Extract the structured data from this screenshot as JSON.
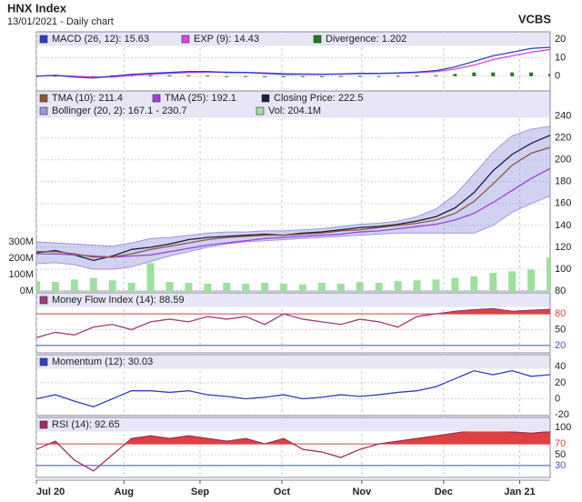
{
  "header": {
    "title": "HNX Index",
    "subtitle": "13/01/2021 - Daily chart",
    "source": "VCBS"
  },
  "x_axis": {
    "xlim": [
      0,
      27
    ],
    "xticks": [
      {
        "value": 0,
        "label": "Jul 20"
      },
      {
        "value": 4.6,
        "label": "Aug"
      },
      {
        "value": 8.6,
        "label": "Sep"
      },
      {
        "value": 12.9,
        "label": "Oct"
      },
      {
        "value": 17.1,
        "label": "Nov"
      },
      {
        "value": 21.4,
        "label": "Dec"
      },
      {
        "value": 25.4,
        "label": "Jan 21"
      }
    ]
  },
  "chart_data": [
    {
      "type": "line",
      "ylim": [
        -8,
        24
      ],
      "yticks": [
        0,
        10,
        20
      ],
      "grid": true,
      "series": [
        {
          "name": "MACD (26, 12): 15.63",
          "color": "#2a3fc4",
          "values": [
            0,
            0.5,
            -0.5,
            -1,
            0,
            1,
            1.5,
            2,
            2.5,
            2.5,
            2,
            2,
            1.5,
            1,
            1,
            1,
            1.2,
            1.5,
            1.5,
            1.8,
            2.2,
            3,
            5,
            8,
            11,
            13,
            15,
            15.63
          ]
        },
        {
          "name": "EXP (9): 14.43",
          "color": "#e040e0",
          "values": [
            0,
            0.3,
            0,
            -0.5,
            -0.5,
            0.5,
            1,
            1.5,
            2,
            2.2,
            2.2,
            2,
            1.8,
            1.4,
            1.2,
            1.1,
            1.1,
            1.3,
            1.4,
            1.6,
            1.9,
            2.5,
            3.8,
            6,
            9,
            11,
            13,
            14.43
          ]
        },
        {
          "name": "Divergence: 1.202",
          "color": "#1f7a1f",
          "kind": "bar",
          "values": [
            0,
            0.2,
            -0.5,
            -0.5,
            0.5,
            0.5,
            0.5,
            0.5,
            0.5,
            0.3,
            -0.2,
            0,
            -0.3,
            -0.4,
            -0.2,
            -0.1,
            0.1,
            0.2,
            0.1,
            0.2,
            0.3,
            0.5,
            1.2,
            2,
            2,
            2,
            2,
            1.202
          ]
        }
      ]
    },
    {
      "type": "line",
      "ylim": [
        80,
        263
      ],
      "yticks": [
        80,
        100,
        120,
        140,
        160,
        180,
        200,
        220,
        240
      ],
      "grid": true,
      "y2lim": [
        0,
        1220
      ],
      "y2ticks": [
        {
          "value": 0,
          "label": "0M"
        },
        {
          "value": 100,
          "label": "100M"
        },
        {
          "value": 200,
          "label": "200M"
        },
        {
          "value": 300,
          "label": "300M"
        }
      ],
      "series": [
        {
          "name": "TMA (10): 211.4",
          "color": "#8b5a3c",
          "values": [
            116,
            116,
            114,
            111,
            111,
            114,
            118,
            121,
            124,
            127,
            129,
            130,
            131,
            131,
            132,
            133,
            135,
            136,
            138,
            140,
            142,
            145,
            151,
            162,
            178,
            195,
            206,
            211.4
          ]
        },
        {
          "name": "TMA (25): 192.1",
          "color": "#a040e0",
          "values": [
            114,
            114,
            113,
            112,
            111,
            112,
            113,
            116,
            119,
            122,
            124,
            126,
            128,
            129,
            130,
            131,
            132,
            134,
            135,
            137,
            139,
            141,
            145,
            151,
            161,
            172,
            183,
            192.1
          ]
        },
        {
          "name": "Closing Price: 222.5",
          "color": "#1c1c3c",
          "values": [
            115,
            117,
            113,
            108,
            112,
            118,
            120,
            123,
            127,
            129,
            130,
            131,
            132,
            131,
            133,
            134,
            136,
            138,
            139,
            141,
            144,
            148,
            156,
            170,
            190,
            205,
            215,
            222.5
          ]
        },
        {
          "name": "Bollinger (20, 2): 167.1 - 230.7",
          "color": "#9a9ae0",
          "kind": "band",
          "upper": [
            125,
            124,
            123,
            122,
            121,
            124,
            128,
            129,
            131,
            133,
            134,
            134,
            135,
            135,
            136,
            137,
            139,
            141,
            142,
            144,
            148,
            155,
            168,
            187,
            207,
            222,
            228,
            230.7
          ],
          "lower": [
            105,
            106,
            104,
            100,
            100,
            102,
            107,
            112,
            116,
            120,
            123,
            125,
            126,
            127,
            128,
            129,
            130,
            131,
            132,
            133,
            133,
            133,
            133,
            133,
            140,
            152,
            160,
            167.1
          ]
        },
        {
          "name": "Vol: 204.1M",
          "color": "#9fe09f",
          "kind": "bar",
          "axis": "y2",
          "values": [
            60,
            55,
            70,
            80,
            65,
            50,
            170,
            55,
            50,
            45,
            50,
            45,
            50,
            45,
            40,
            50,
            45,
            55,
            50,
            60,
            65,
            70,
            80,
            90,
            110,
            120,
            130,
            204.1
          ]
        }
      ]
    },
    {
      "type": "line",
      "ylim": [
        6,
        120
      ],
      "yticks": [
        20,
        50,
        80
      ],
      "grid": true,
      "reference_lines": [
        {
          "value": 80,
          "color": "#e04040",
          "fill": "above"
        },
        {
          "value": 20,
          "color": "#4050d0"
        }
      ],
      "series": [
        {
          "name": "Money Flow Index (14): 88.59",
          "color": "#a03c78",
          "values": [
            35,
            45,
            40,
            55,
            60,
            50,
            65,
            70,
            65,
            75,
            70,
            75,
            60,
            80,
            70,
            65,
            60,
            70,
            65,
            55,
            75,
            80,
            85,
            88,
            90,
            85,
            87,
            88.59
          ]
        }
      ]
    },
    {
      "type": "line",
      "ylim": [
        -21,
        55
      ],
      "yticks": [
        -20,
        0,
        20,
        40
      ],
      "grid": true,
      "series": [
        {
          "name": "Momentum (12): 30.03",
          "color": "#3040c0",
          "values": [
            0,
            5,
            -3,
            -10,
            0,
            10,
            10,
            8,
            10,
            5,
            3,
            0,
            2,
            5,
            0,
            2,
            5,
            3,
            5,
            8,
            10,
            15,
            25,
            35,
            30,
            35,
            28,
            30.03
          ]
        }
      ]
    },
    {
      "type": "line",
      "ylim": [
        8,
        119
      ],
      "yticks": [
        30,
        50,
        70,
        100
      ],
      "grid": true,
      "reference_lines": [
        {
          "value": 70,
          "color": "#e04040",
          "fill": "above"
        },
        {
          "value": 30,
          "color": "#4050d0"
        }
      ],
      "series": [
        {
          "name": "RSI (14): 92.65",
          "color": "#a03060",
          "values": [
            60,
            75,
            40,
            20,
            50,
            80,
            85,
            80,
            85,
            80,
            75,
            80,
            70,
            80,
            60,
            55,
            45,
            60,
            70,
            75,
            80,
            85,
            90,
            95,
            95,
            92,
            90,
            92.65
          ]
        }
      ]
    }
  ]
}
